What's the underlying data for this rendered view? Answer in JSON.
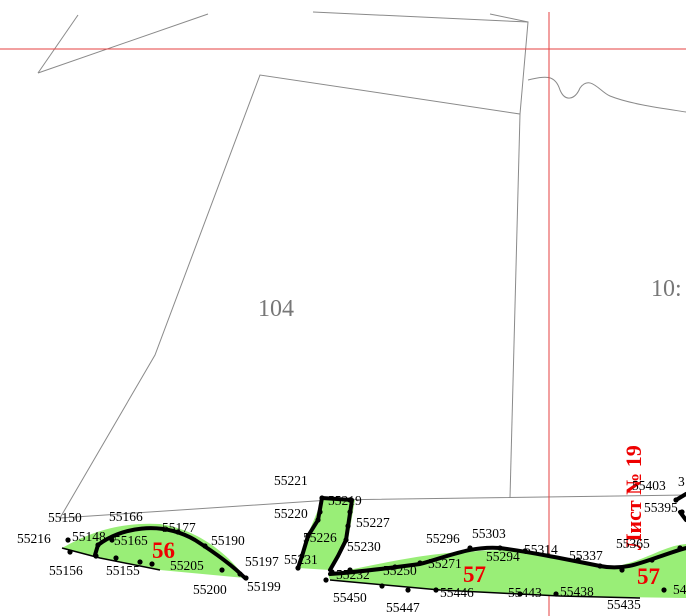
{
  "parcels": [
    {
      "id": "parcel-104",
      "label": "104"
    },
    {
      "id": "parcel-105",
      "label": "10:"
    }
  ],
  "zones": [
    {
      "id": "zone-56",
      "label": "56"
    },
    {
      "id": "zone-57-a",
      "label": "57"
    },
    {
      "id": "zone-57-b",
      "label": "57"
    }
  ],
  "sheet_label": "Лист № 19",
  "points": [
    "55150",
    "55166",
    "55177",
    "55216",
    "55148",
    "55165",
    "55190",
    "55156",
    "55155",
    "55205",
    "55197",
    "55200",
    "55199",
    "55221",
    "55219",
    "55220",
    "55227",
    "55226",
    "55230",
    "55231",
    "55232",
    "55250",
    "55450",
    "55447",
    "55296",
    "55303",
    "55271",
    "55294",
    "55314",
    "55337",
    "55446",
    "55443",
    "55438",
    "55435",
    "55403",
    "55395",
    "55365",
    "3",
    "54"
  ]
}
